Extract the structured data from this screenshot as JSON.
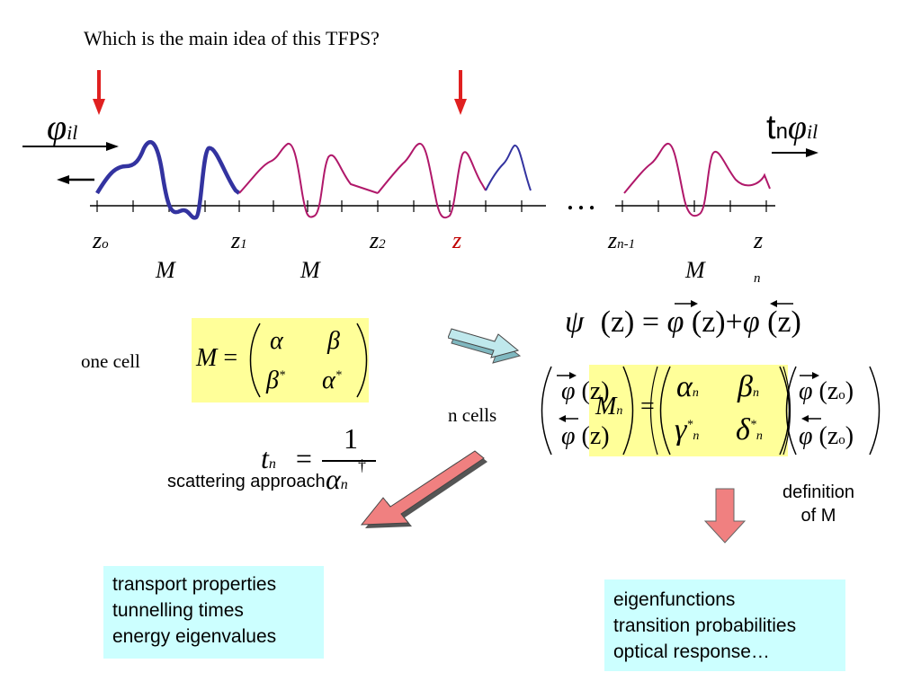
{
  "question": "Which is the main idea of this TFPS?",
  "phi_il_left": "φ",
  "phi_il_left_sub": "il",
  "tn_phi_il": "t",
  "tn_phi_il_n": "n",
  "tn_phi_il_phi": "φ",
  "tn_phi_il_sub": "il",
  "axis_labels": {
    "z0": "z",
    "z0_sub": "o",
    "z1": "z",
    "z1_sub": "1",
    "z2": "z",
    "z2_sub": "2",
    "z": "z",
    "zn1": "z",
    "zn1_sub": "n-1",
    "zn": "z",
    "zn_sub": "n"
  },
  "ellipsis": "…",
  "m_labels": [
    "M",
    "M",
    "M"
  ],
  "one_cell": "one cell",
  "n_cells": "n cells",
  "matrix_M": {
    "lhs": "M",
    "eq": "=",
    "a": "α",
    "b": "β",
    "c": "β",
    "d": "α",
    "star": "*"
  },
  "tn_formula": {
    "t": "t",
    "n": "n",
    "eq": "=",
    "num": "1",
    "den": "α",
    "dag": "†"
  },
  "scattering": "scattering approach",
  "psi_formula": {
    "psi": "ψ",
    "z": "(z)",
    "eq": "=",
    "phi": "φ",
    "plus": "+"
  },
  "matrix_n": {
    "phi": "φ",
    "z": "(z)",
    "zo": "(z",
    "zo_sub": "o",
    "close": ")",
    "M": "M",
    "n": "n",
    "eq": "=",
    "a": "α",
    "b": "β",
    "g": "γ",
    "d": "δ",
    "star": "*"
  },
  "definition": [
    "definition",
    "of M"
  ],
  "left_box": [
    "transport properties",
    "tunnelling times",
    "energy eigenvalues"
  ],
  "right_box": [
    "eigenfunctions",
    "transition probabilities",
    "optical response…"
  ],
  "colors": {
    "blue": "#2b2b9b",
    "magenta": "#b0186a",
    "red": "#e02020",
    "yellow": "#ffff99",
    "cyan": "#ccffff",
    "pink": "#f08080",
    "lightcyan": "#a8dce0"
  }
}
